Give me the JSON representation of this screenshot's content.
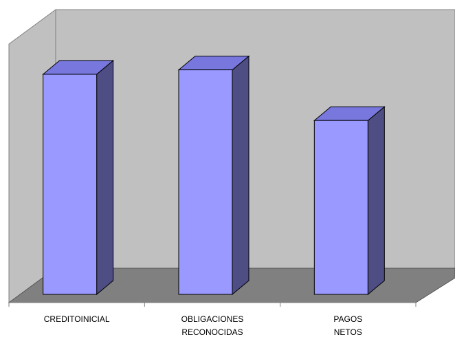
{
  "chart_data": {
    "type": "bar",
    "style": "3d-column",
    "categories": [
      "CREDITOINICIAL",
      "OBLIGACIONES RECONOCIDAS",
      "PAGOS NETOS"
    ],
    "values": [
      100,
      102,
      79
    ],
    "ylim": [
      0,
      115
    ],
    "grid": false,
    "legend": "none",
    "title": "",
    "xlabel": "",
    "ylabel": ""
  },
  "colors": {
    "bar_front": "#9999ff",
    "bar_top": "#7777dd",
    "bar_side": "#4e4d84",
    "back_wall": "#c0c0c0",
    "side_wall": "#c0c0c0",
    "floor": "#808080",
    "outline": "#000000"
  }
}
